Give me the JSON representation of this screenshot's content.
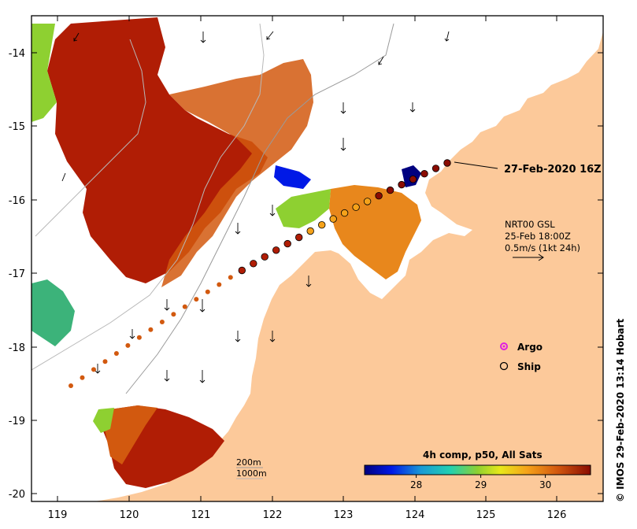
{
  "map": {
    "x_ticks": [
      "119",
      "120",
      "121",
      "122",
      "123",
      "124",
      "125",
      "126"
    ],
    "y_ticks": [
      "-14",
      "-15",
      "-16",
      "-17",
      "-18",
      "-19",
      "-20"
    ],
    "track_label": "27-Feb-2020 16Z",
    "current_info": {
      "line1": "NRT00 GSL",
      "line2": "25-Feb 18:00Z",
      "line3": "0.5m/s (1kt 24h)"
    },
    "legend": {
      "argo_label": "Argo",
      "ship_label": "Ship"
    },
    "contours": {
      "label_200": "200m",
      "label_1000": "1000m"
    },
    "colorbar": {
      "title": "4h comp, p50, All Sats",
      "ticks": [
        "28",
        "29",
        "30"
      ],
      "range": [
        27.2,
        30.7
      ],
      "tick_values": [
        28,
        29,
        30
      ]
    },
    "credit": "IMOS 29-Feb-2020 13:14 Hobart",
    "credit_symbol": "©",
    "colors": {
      "land": "#fcc99a",
      "warm": "#b01d05",
      "mid": "#e87a1a",
      "green": "#8ed031",
      "cool": "#1a9ad6",
      "cold": "#00007f"
    }
  }
}
